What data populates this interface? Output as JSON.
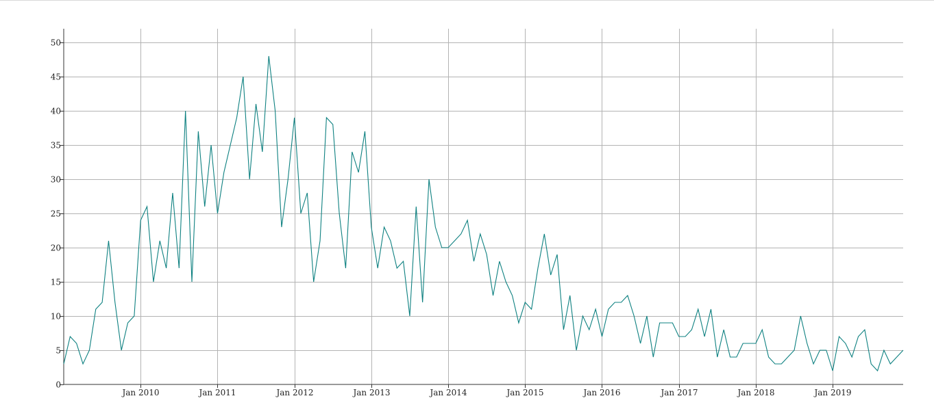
{
  "chart_data": {
    "type": "line",
    "title": "",
    "xlabel": "",
    "ylabel": "",
    "grid": true,
    "legend": "none",
    "line_color": "#0d8080",
    "x_start": "2009-01",
    "xlim": [
      "2009-01",
      "2019-12"
    ],
    "ylim": [
      0,
      52
    ],
    "y_ticks": [
      0,
      5,
      10,
      15,
      20,
      25,
      30,
      35,
      40,
      45,
      50
    ],
    "x_ticks": [
      {
        "date": "2010-01",
        "label": "Jan 2010"
      },
      {
        "date": "2011-01",
        "label": "Jan 2011"
      },
      {
        "date": "2012-01",
        "label": "Jan 2012"
      },
      {
        "date": "2013-01",
        "label": "Jan 2013"
      },
      {
        "date": "2014-01",
        "label": "Jan 2014"
      },
      {
        "date": "2015-01",
        "label": "Jan 2015"
      },
      {
        "date": "2016-01",
        "label": "Jan 2016"
      },
      {
        "date": "2017-01",
        "label": "Jan 2017"
      },
      {
        "date": "2018-01",
        "label": "Jan 2018"
      },
      {
        "date": "2019-01",
        "label": "Jan 2019"
      }
    ],
    "series": [
      {
        "values": [
          3,
          7,
          6,
          3,
          5,
          11,
          12,
          21,
          12,
          5,
          9,
          10,
          24,
          26,
          15,
          21,
          17,
          28,
          17,
          40,
          15,
          37,
          26,
          35,
          25,
          31,
          35,
          39,
          45,
          30,
          41,
          34,
          48,
          40,
          23,
          30,
          39,
          25,
          28,
          15,
          21,
          39,
          38,
          25,
          17,
          34,
          31,
          37,
          23,
          17,
          23,
          21,
          17,
          18,
          10,
          26,
          12,
          30,
          23,
          20,
          20,
          21,
          22,
          24,
          18,
          22,
          19,
          13,
          18,
          15,
          13,
          9,
          12,
          11,
          17,
          22,
          16,
          19,
          8,
          13,
          5,
          10,
          8,
          11,
          7,
          11,
          12,
          12,
          13,
          10,
          6,
          10,
          4,
          9,
          9,
          9,
          7,
          7,
          8,
          11,
          7,
          11,
          4,
          8,
          4,
          4,
          6,
          6,
          6,
          8,
          4,
          3,
          3,
          4,
          5,
          10,
          6,
          3,
          5,
          5,
          2,
          7,
          6,
          4,
          7,
          8,
          3,
          2,
          5,
          3,
          4,
          5
        ]
      }
    ]
  }
}
